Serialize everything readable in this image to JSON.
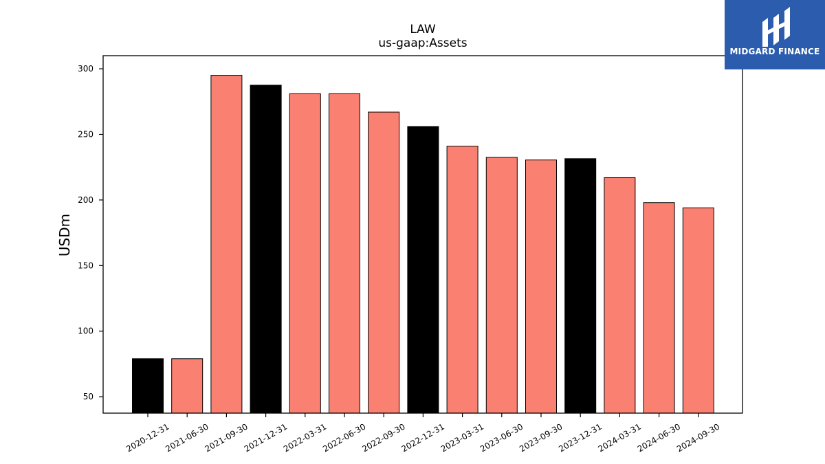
{
  "brand": {
    "name": "MIDGARD FINANCE",
    "bg_color": "#2b5cae",
    "icon": "midgard-logo-icon"
  },
  "chart_data": {
    "type": "bar",
    "title": "LAW",
    "subtitle": "us-gaap:Assets",
    "xlabel": "",
    "ylabel": "USDm",
    "categories": [
      "2020-12-31",
      "2021-06-30",
      "2021-09-30",
      "2021-12-31",
      "2022-03-31",
      "2022-06-30",
      "2022-09-30",
      "2022-12-31",
      "2023-03-31",
      "2023-06-30",
      "2023-09-30",
      "2023-12-31",
      "2024-03-31",
      "2024-06-30",
      "2024-09-30"
    ],
    "values": [
      79,
      79,
      295,
      287.5,
      281,
      281,
      267,
      256,
      241,
      232.5,
      230.5,
      231.5,
      217,
      198,
      194
    ],
    "bar_colors": [
      "#000000",
      "#fa8072",
      "#fa8072",
      "#000000",
      "#fa8072",
      "#fa8072",
      "#fa8072",
      "#000000",
      "#fa8072",
      "#fa8072",
      "#fa8072",
      "#000000",
      "#fa8072",
      "#fa8072",
      "#fa8072"
    ],
    "yticks": [
      50,
      100,
      150,
      200,
      250,
      300
    ],
    "ylim": [
      37.5,
      310
    ],
    "grid": false,
    "legend": "none"
  }
}
